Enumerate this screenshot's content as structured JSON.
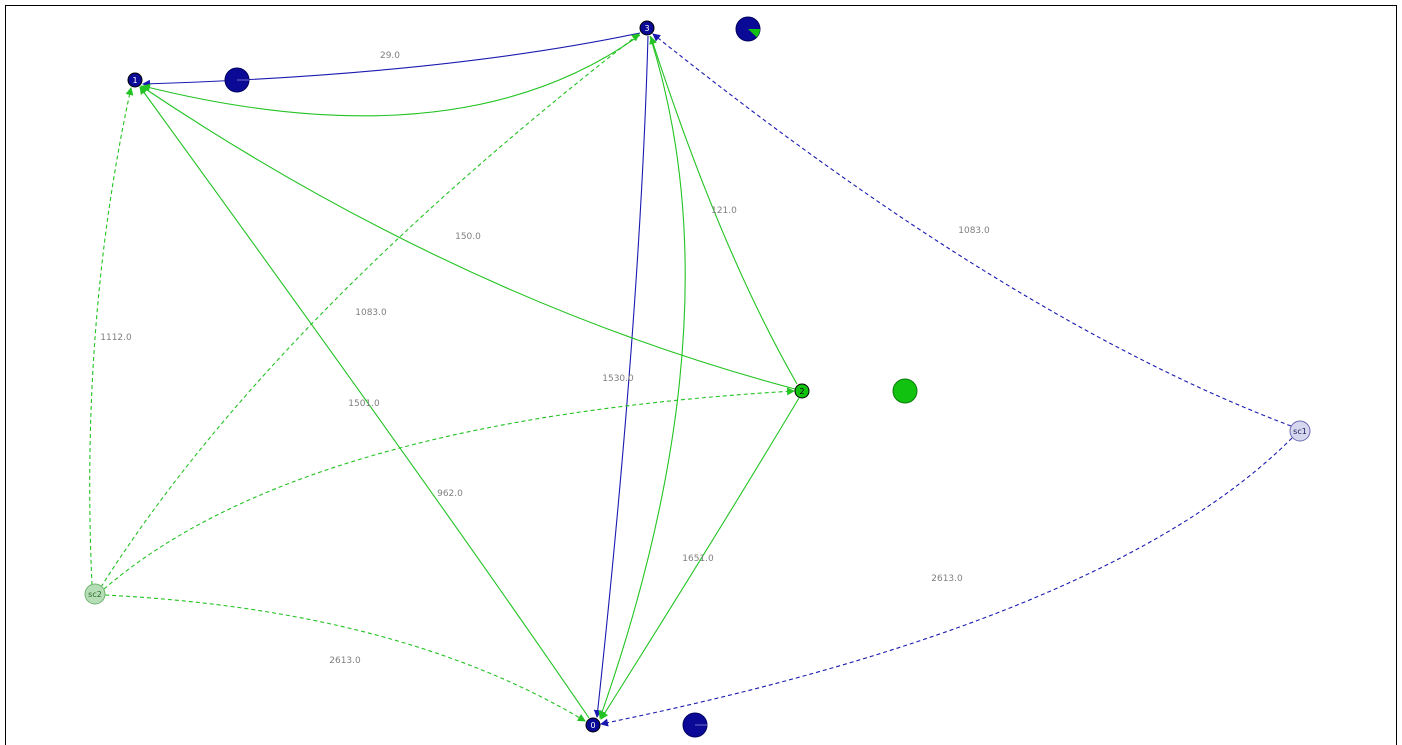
{
  "colors": {
    "blue": "#1a1ab0",
    "green": "#22c322",
    "node_blue": "#0a0a96",
    "node_green": "#11c211",
    "sc1_fill": "#d6d6ee",
    "sc1_stroke": "#6a6ab6",
    "sc2_fill": "#b6deb6",
    "sc2_stroke": "#6fb46f",
    "label": "#7f7f7f"
  },
  "nodes": [
    {
      "id": "n0",
      "label": "0",
      "kind": "blue"
    },
    {
      "id": "n1",
      "label": "1",
      "kind": "blue"
    },
    {
      "id": "n2",
      "label": "2",
      "kind": "green"
    },
    {
      "id": "n3",
      "label": "3",
      "kind": "blue"
    },
    {
      "id": "sc1",
      "label": "sc1",
      "kind": "source-blue"
    },
    {
      "id": "sc2",
      "label": "sc2",
      "kind": "source-green"
    }
  ],
  "pies": [
    {
      "near": "n1",
      "green_fraction": 0.0
    },
    {
      "near": "n3",
      "green_fraction": 0.12
    },
    {
      "near": "n2",
      "green_fraction": 1.0
    },
    {
      "near": "n0",
      "green_fraction": 0.0
    }
  ],
  "edges": [
    {
      "from": "n3",
      "to": "n1",
      "color": "blue",
      "style": "solid",
      "label": "29.0"
    },
    {
      "from": "n3",
      "to": "n1",
      "color": "green",
      "style": "solid",
      "label": ""
    },
    {
      "from": "n3",
      "to": "n0",
      "color": "blue",
      "style": "solid",
      "label": "1530.0"
    },
    {
      "from": "n3",
      "to": "n0",
      "color": "green",
      "style": "solid",
      "label": ""
    },
    {
      "from": "n2",
      "to": "n3",
      "color": "green",
      "style": "solid",
      "label": "121.0"
    },
    {
      "from": "n2",
      "to": "n1",
      "color": "green",
      "style": "solid",
      "label": "150.0"
    },
    {
      "from": "n2",
      "to": "n0",
      "color": "green",
      "style": "solid",
      "label": "1651.0"
    },
    {
      "from": "n0",
      "to": "n1",
      "color": "green",
      "style": "solid",
      "label": "1501.0"
    },
    {
      "from": "sc2",
      "to": "n1",
      "color": "green",
      "style": "dashed",
      "label": "1112.0"
    },
    {
      "from": "sc2",
      "to": "n3",
      "color": "green",
      "style": "dashed",
      "label": "1083.0"
    },
    {
      "from": "sc2",
      "to": "n2",
      "color": "green",
      "style": "dashed",
      "label": "962.0"
    },
    {
      "from": "sc2",
      "to": "n0",
      "color": "green",
      "style": "dashed",
      "label": "2613.0"
    },
    {
      "from": "sc1",
      "to": "n3",
      "color": "blue",
      "style": "dashed",
      "label": "1083.0"
    },
    {
      "from": "sc1",
      "to": "n0",
      "color": "blue",
      "style": "dashed",
      "label": "2613.0"
    }
  ]
}
